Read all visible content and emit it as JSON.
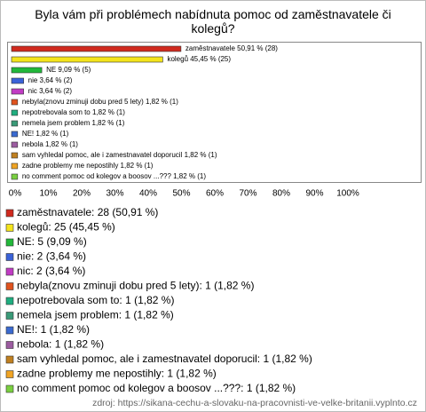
{
  "chart_data": {
    "type": "bar",
    "orientation": "horizontal",
    "title": "Byla vám při problémech nabídnuta pomoc od zaměstnavatele či kolegů?",
    "categories": [
      "zaměstnavatele",
      "kolegů",
      "NE",
      "nie",
      "nic",
      "nebyla(znovu zminuji dobu pred 5 lety)",
      "nepotrebovala som to",
      "nemela jsem problem",
      "NE!",
      "nebola",
      "sam vyhledal pomoc, ale i zamestnavatel doporucil",
      "zadne problemy me nepostihly",
      "no comment pomoc od kolegov a boosov ...???"
    ],
    "values": [
      50.91,
      45.45,
      9.09,
      3.64,
      3.64,
      1.82,
      1.82,
      1.82,
      1.82,
      1.82,
      1.82,
      1.82,
      1.82
    ],
    "value_labels": [
      "zaměstnavatele 50,91 % (28)",
      "kolegů 45,45 % (25)",
      "NE 9,09 % (5)",
      "nie 3,64 % (2)",
      "nic 3,64 % (2)",
      "nebyla(znovu zminuji dobu pred 5 lety) 1,82 % (1)",
      "nepotrebovala som to 1,82 % (1)",
      "nemela jsem problem 1,82 % (1)",
      "NE! 1,82 % (1)",
      "nebola 1,82 % (1)",
      "sam vyhledal pomoc, ale i zamestnavatel doporucil 1,82 % (1)",
      "zadne problemy me nepostihly 1,82 % (1)",
      "no comment pomoc od kolegov a boosov ...??? 1,82 % (1)"
    ],
    "legend_labels": [
      "zaměstnavatele: 28 (50,91 %)",
      "kolegů: 25 (45,45 %)",
      "NE: 5 (9,09 %)",
      "nie: 2 (3,64 %)",
      "nic: 2 (3,64 %)",
      "nebyla(znovu zminuji dobu pred 5 lety): 1 (1,82 %)",
      "nepotrebovala som to: 1 (1,82 %)",
      "nemela jsem problem: 1 (1,82 %)",
      "NE!: 1 (1,82 %)",
      "nebola: 1 (1,82 %)",
      "sam vyhledal pomoc, ale i zamestnavatel doporucil: 1 (1,82 %)",
      "zadne problemy me nepostihly: 1 (1,82 %)",
      "no comment pomoc od kolegov a boosov ...???: 1 (1,82 %)"
    ],
    "colors": [
      "#d02a1e",
      "#f4e41c",
      "#22b83a",
      "#3a62d8",
      "#c13cc4",
      "#e0531e",
      "#1fae80",
      "#3a9a78",
      "#3a6ad0",
      "#9c5ca0",
      "#c08020",
      "#f0a424",
      "#7ad040"
    ],
    "xlim": [
      0,
      100
    ],
    "xticks": [
      {
        "value": 0,
        "label": "0%"
      },
      {
        "value": 10,
        "label": "10%"
      },
      {
        "value": 20,
        "label": "20%"
      },
      {
        "value": 30,
        "label": "30%"
      },
      {
        "value": 40,
        "label": "40%"
      },
      {
        "value": 50,
        "label": "50%"
      },
      {
        "value": 60,
        "label": "60%"
      },
      {
        "value": 70,
        "label": "70%"
      },
      {
        "value": 80,
        "label": "80%"
      },
      {
        "value": 90,
        "label": "90%"
      },
      {
        "value": 100,
        "label": "100%"
      }
    ],
    "source": "zdroj: https://sikana-cechu-a-slovaku-na-pracovnisti-ve-velke-britanii.vyplnto.cz"
  }
}
